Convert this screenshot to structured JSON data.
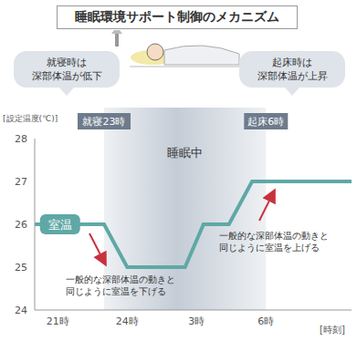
{
  "chart_data": {
    "type": "line",
    "title": "睡眠環境サポート制御のメカニズム",
    "y_label": "[設定温度(℃)]",
    "x_label": "[時刻]",
    "x": [
      20,
      23,
      24,
      26.5,
      27.3,
      28.4,
      29.4,
      33.7
    ],
    "series": [
      {
        "name": "室温",
        "color": "#5fa8a6",
        "values": [
          26,
          26,
          25,
          25,
          26,
          26,
          27,
          27
        ]
      }
    ],
    "xlim": [
      20,
      33.7
    ],
    "xticks": [
      {
        "value": 21,
        "label": "21時"
      },
      {
        "value": 24,
        "label": "24時"
      },
      {
        "value": 27,
        "label": "3時"
      },
      {
        "value": 30,
        "label": "6時"
      }
    ],
    "ylim": [
      24,
      28
    ],
    "yticks": [
      24,
      25,
      26,
      27,
      28
    ],
    "grid": false,
    "shaded_range": {
      "x": [
        23,
        30
      ],
      "label": "睡眠中"
    },
    "markers": [
      {
        "x": 23,
        "label": "就寝23時"
      },
      {
        "x": 30,
        "label": "起床6時"
      }
    ],
    "callouts": [
      {
        "lines": [
          "就寝時は",
          "深部体温が低下"
        ]
      },
      {
        "lines": [
          "起床時は",
          "深部体温が上昇"
        ]
      }
    ],
    "annotations": [
      {
        "lines": [
          "一般的な深部体温の動きと",
          "同じように室温を下げる"
        ]
      },
      {
        "lines": [
          "一般的な深部体温の動きと",
          "同じように室温を上げる"
        ]
      }
    ]
  }
}
